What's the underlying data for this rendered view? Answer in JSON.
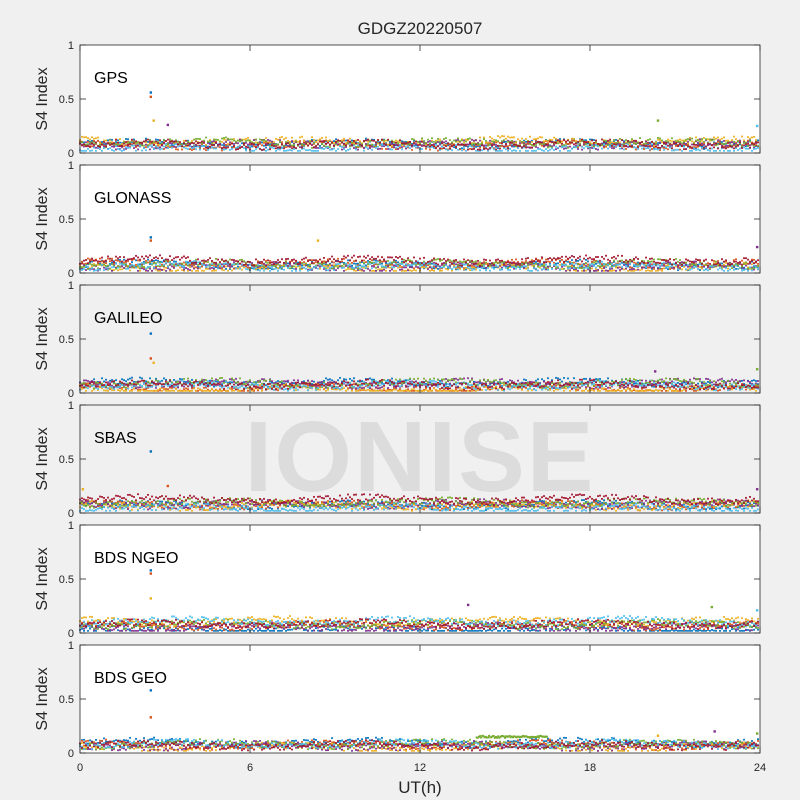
{
  "title": "GDGZ20220507",
  "watermark": "IONISE",
  "xlabel": "UT(h)",
  "ylabel": "S4 Index",
  "xticks": [
    "0",
    "6",
    "12",
    "18",
    "24"
  ],
  "yticks": [
    "0",
    "0.5",
    "1"
  ],
  "series_colors": [
    "#0072bd",
    "#d95319",
    "#edb120",
    "#7e2f8e",
    "#77ac30",
    "#4dbeee",
    "#a2142f"
  ],
  "chart_data": [
    {
      "type": "scatter",
      "name": "GPS",
      "label": "GPS",
      "xlabel": "UT(h)",
      "ylabel": "S4 Index",
      "xlim": [
        0,
        24
      ],
      "ylim": [
        0,
        1
      ],
      "baseline": [
        0.04,
        0.14
      ],
      "background": "#ffffff",
      "series_note": "dense multicolor points per satellite",
      "spikes": [
        {
          "x": 2.5,
          "y": 0.56
        },
        {
          "x": 2.5,
          "y": 0.52
        },
        {
          "x": 2.6,
          "y": 0.3
        },
        {
          "x": 3.1,
          "y": 0.26
        },
        {
          "x": 20.4,
          "y": 0.3
        },
        {
          "x": 23.9,
          "y": 0.25
        }
      ]
    },
    {
      "type": "scatter",
      "name": "GLONASS",
      "label": "GLONASS",
      "xlabel": "UT(h)",
      "ylabel": "S4 Index",
      "xlim": [
        0,
        24
      ],
      "ylim": [
        0,
        1
      ],
      "baseline": [
        0.03,
        0.16
      ],
      "background": "#ffffff",
      "spikes": [
        {
          "x": 2.5,
          "y": 0.33
        },
        {
          "x": 2.5,
          "y": 0.3
        },
        {
          "x": 8.4,
          "y": 0.3
        },
        {
          "x": 23.9,
          "y": 0.24
        }
      ]
    },
    {
      "type": "scatter",
      "name": "GALILEO",
      "label": "GALILEO",
      "xlabel": "UT(h)",
      "ylabel": "S4 Index",
      "xlim": [
        0,
        24
      ],
      "ylim": [
        0,
        1
      ],
      "baseline": [
        0.03,
        0.15
      ],
      "background": "#f0f0f0",
      "spikes": [
        {
          "x": 2.5,
          "y": 0.55
        },
        {
          "x": 2.5,
          "y": 0.32
        },
        {
          "x": 2.6,
          "y": 0.28
        },
        {
          "x": 20.3,
          "y": 0.2
        },
        {
          "x": 23.9,
          "y": 0.22
        }
      ]
    },
    {
      "type": "scatter",
      "name": "SBAS",
      "label": "SBAS",
      "xlabel": "UT(h)",
      "ylabel": "S4 Index",
      "xlim": [
        0,
        24
      ],
      "ylim": [
        0,
        1
      ],
      "baseline": [
        0.04,
        0.18
      ],
      "background": "#f0f0f0",
      "spikes": [
        {
          "x": 2.5,
          "y": 0.57
        },
        {
          "x": 3.1,
          "y": 0.25
        },
        {
          "x": 0.1,
          "y": 0.22
        },
        {
          "x": 23.9,
          "y": 0.22
        }
      ]
    },
    {
      "type": "scatter",
      "name": "BDS NGEO",
      "label": "BDS NGEO",
      "xlabel": "UT(h)",
      "ylabel": "S4 Index",
      "xlim": [
        0,
        24
      ],
      "ylim": [
        0,
        1
      ],
      "baseline": [
        0.03,
        0.14
      ],
      "background": "#ffffff",
      "spikes": [
        {
          "x": 2.5,
          "y": 0.58
        },
        {
          "x": 2.5,
          "y": 0.55
        },
        {
          "x": 2.5,
          "y": 0.32
        },
        {
          "x": 13.7,
          "y": 0.26
        },
        {
          "x": 22.3,
          "y": 0.24
        },
        {
          "x": 23.9,
          "y": 0.21
        }
      ]
    },
    {
      "type": "scatter",
      "name": "BDS GEO",
      "label": "BDS GEO",
      "xlabel": "UT(h)",
      "ylabel": "S4 Index",
      "xlim": [
        0,
        24
      ],
      "ylim": [
        0,
        1
      ],
      "baseline": [
        0.05,
        0.13
      ],
      "background": "#ffffff",
      "spikes": [
        {
          "x": 2.5,
          "y": 0.58
        },
        {
          "x": 2.5,
          "y": 0.33
        },
        {
          "x": 20.4,
          "y": 0.16
        },
        {
          "x": 22.4,
          "y": 0.2
        },
        {
          "x": 23.9,
          "y": 0.18
        }
      ],
      "segment": {
        "x_start": 14.0,
        "x_end": 16.5,
        "y": 0.15,
        "color": "#77ac30"
      }
    }
  ]
}
